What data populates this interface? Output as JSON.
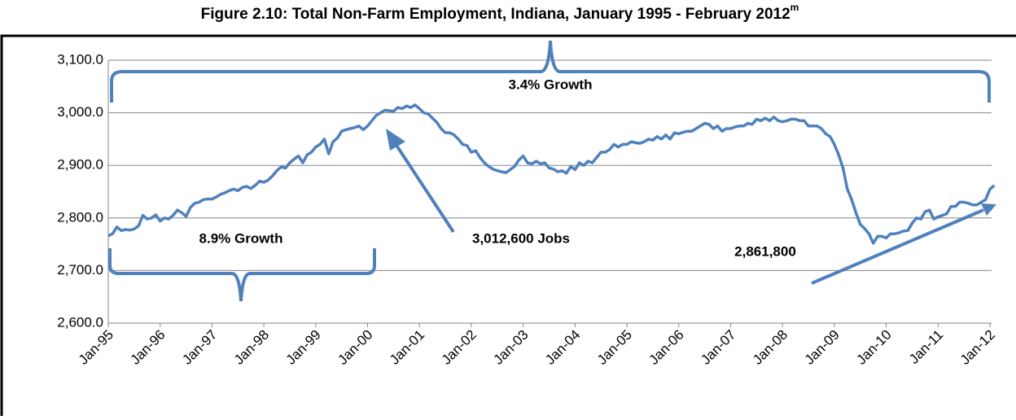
{
  "chart_data": {
    "type": "line",
    "title": "Figure 2.10: Total Non-Farm Employment, Indiana, January 1995 - February 2012",
    "title_superscript": "m",
    "color": "#4f81bd",
    "grid": true,
    "ylim": [
      2600,
      3100
    ],
    "yticks": [
      {
        "value": 2600,
        "label": "2,600.0"
      },
      {
        "value": 2700,
        "label": "2,700.0"
      },
      {
        "value": 2800,
        "label": "2,800.0"
      },
      {
        "value": 2900,
        "label": "2,900.0"
      },
      {
        "value": 3000,
        "label": "3,000.0"
      },
      {
        "value": 3100,
        "label": "3,100.0"
      }
    ],
    "annotations": [
      "3.4% Growth",
      "8.9% Growth",
      "3,012,600 Jobs",
      "2,861,800"
    ],
    "categories": [
      "Jan-95",
      null,
      null,
      null,
      null,
      null,
      null,
      null,
      null,
      null,
      null,
      null,
      "Jan-96",
      null,
      null,
      null,
      null,
      null,
      null,
      null,
      null,
      null,
      null,
      null,
      "Jan-97",
      null,
      null,
      null,
      null,
      null,
      null,
      null,
      null,
      null,
      null,
      null,
      "Jan-98",
      null,
      null,
      null,
      null,
      null,
      null,
      null,
      null,
      null,
      null,
      null,
      "Jan-99",
      null,
      null,
      null,
      null,
      null,
      null,
      null,
      null,
      null,
      null,
      null,
      "Jan-00",
      null,
      null,
      null,
      null,
      null,
      null,
      null,
      null,
      null,
      null,
      null,
      "Jan-01",
      null,
      null,
      null,
      null,
      null,
      null,
      null,
      null,
      null,
      null,
      null,
      "Jan-02",
      null,
      null,
      null,
      null,
      null,
      null,
      null,
      null,
      null,
      null,
      null,
      "Jan-03",
      null,
      null,
      null,
      null,
      null,
      null,
      null,
      null,
      null,
      null,
      null,
      "Jan-04",
      null,
      null,
      null,
      null,
      null,
      null,
      null,
      null,
      null,
      null,
      null,
      "Jan-05",
      null,
      null,
      null,
      null,
      null,
      null,
      null,
      null,
      null,
      null,
      null,
      "Jan-06",
      null,
      null,
      null,
      null,
      null,
      null,
      null,
      null,
      null,
      null,
      null,
      "Jan-07",
      null,
      null,
      null,
      null,
      null,
      null,
      null,
      null,
      null,
      null,
      null,
      "Jan-08",
      null,
      null,
      null,
      null,
      null,
      null,
      null,
      null,
      null,
      null,
      null,
      "Jan-09",
      null,
      null,
      null,
      null,
      null,
      null,
      null,
      null,
      null,
      null,
      null,
      "Jan-10",
      null,
      null,
      null,
      null,
      null,
      null,
      null,
      null,
      null,
      null,
      null,
      "Jan-11",
      null,
      null,
      null,
      null,
      null,
      null,
      null,
      null,
      null,
      null,
      null,
      "Jan-12",
      null
    ],
    "values": [
      2766,
      2770,
      2783,
      2776,
      2778,
      2777,
      2779,
      2785,
      2805,
      2798,
      2800,
      2806,
      2794,
      2800,
      2798,
      2805,
      2815,
      2810,
      2803,
      2820,
      2828,
      2830,
      2835,
      2836,
      2836,
      2840,
      2845,
      2848,
      2852,
      2855,
      2852,
      2858,
      2860,
      2856,
      2862,
      2870,
      2868,
      2872,
      2880,
      2890,
      2897,
      2895,
      2905,
      2912,
      2918,
      2905,
      2920,
      2925,
      2935,
      2940,
      2950,
      2922,
      2945,
      2952,
      2965,
      2968,
      2970,
      2972,
      2975,
      2968,
      2975,
      2985,
      2995,
      3000,
      3005,
      3004,
      3003,
      3010,
      3008,
      3013,
      3010,
      3015,
      3008,
      3000,
      2998,
      2990,
      2982,
      2970,
      2962,
      2962,
      2958,
      2950,
      2940,
      2938,
      2925,
      2928,
      2915,
      2905,
      2898,
      2893,
      2890,
      2888,
      2886,
      2892,
      2898,
      2910,
      2918,
      2905,
      2903,
      2908,
      2903,
      2905,
      2895,
      2893,
      2888,
      2890,
      2885,
      2898,
      2892,
      2905,
      2900,
      2908,
      2905,
      2915,
      2925,
      2925,
      2930,
      2940,
      2935,
      2940,
      2940,
      2945,
      2943,
      2942,
      2945,
      2950,
      2948,
      2955,
      2950,
      2958,
      2950,
      2962,
      2960,
      2963,
      2965,
      2965,
      2970,
      2975,
      2980,
      2978,
      2970,
      2975,
      2965,
      2970,
      2970,
      2973,
      2975,
      2975,
      2980,
      2978,
      2988,
      2985,
      2990,
      2985,
      2992,
      2985,
      2983,
      2985,
      2988,
      2988,
      2985,
      2985,
      2975,
      2975,
      2975,
      2970,
      2960,
      2955,
      2940,
      2920,
      2895,
      2855,
      2835,
      2810,
      2788,
      2780,
      2770,
      2752,
      2765,
      2765,
      2762,
      2770,
      2770,
      2772,
      2775,
      2776,
      2790,
      2800,
      2798,
      2812,
      2815,
      2798,
      2802,
      2805,
      2808,
      2822,
      2822,
      2830,
      2830,
      2828,
      2825,
      2825,
      2830,
      2835,
      2855,
      2861.8
    ]
  }
}
